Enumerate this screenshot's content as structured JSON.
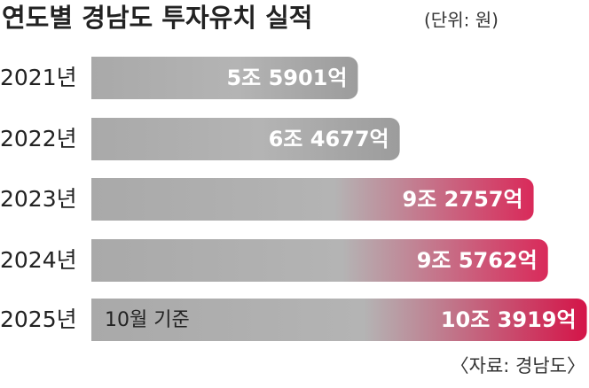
{
  "chart_data": {
    "type": "hbar",
    "title": "연도별 경남도 투자유치 실적",
    "subtitle": "(단위: 원)",
    "categories": [
      "2021년",
      "2022년",
      "2023년",
      "2024년",
      "2025년"
    ],
    "values": [
      55901,
      64677,
      92757,
      95762,
      103919
    ],
    "value_labels": [
      "5조 5901억",
      "6조 4677억",
      "9조 2757억",
      "9조 5762억",
      "10조 3919억"
    ],
    "colors": [
      "#9c9c9c",
      "#9c9c9c",
      "#d92a5a",
      "#d92a5a",
      "#d41448"
    ],
    "xlim": [
      0,
      104000
    ],
    "annotation": "10월 기준",
    "source": "〈자료: 경남도〉"
  }
}
